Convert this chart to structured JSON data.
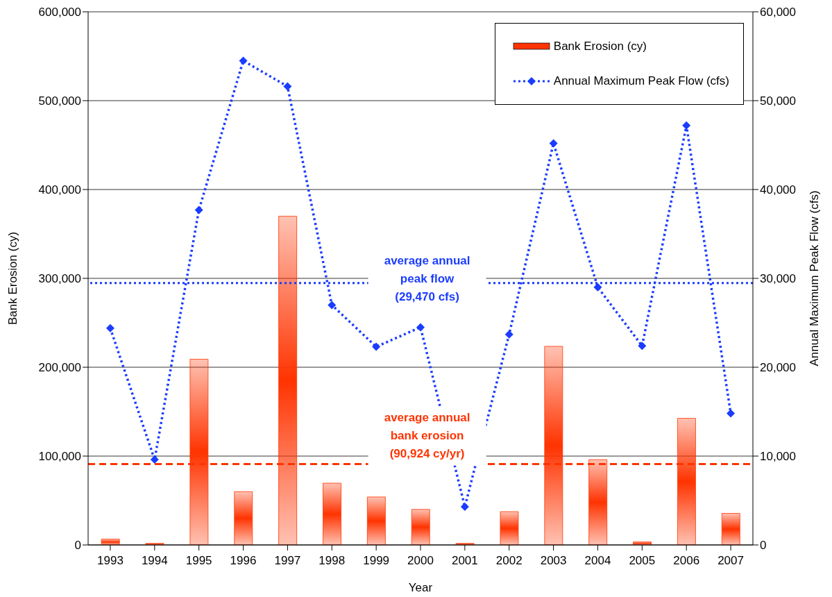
{
  "chart_data": {
    "type": "bar",
    "xlabel": "Year",
    "ylabel": "Bank Erosion (cy)",
    "y2label": "Annual Maximum Peak Flow (cfs)",
    "categories": [
      "1993",
      "1994",
      "1995",
      "1996",
      "1997",
      "1998",
      "1999",
      "2000",
      "2001",
      "2002",
      "2003",
      "2004",
      "2005",
      "2006",
      "2007"
    ],
    "series": [
      {
        "name": "Bank Erosion (cy)",
        "color": "#ff3300",
        "values": [
          6500,
          1800,
          209000,
          60000,
          370000,
          69500,
          54000,
          40000,
          1800,
          37500,
          223500,
          96000,
          3400,
          142500,
          35500
        ]
      },
      {
        "name": "Annual Maximum Peak Flow (cfs)",
        "type": "line",
        "axis": "y2",
        "color": "#1a3cff",
        "marker": "diamond",
        "line_style": "dotted",
        "values": [
          24400,
          9600,
          37700,
          54500,
          51600,
          27000,
          22300,
          24500,
          4300,
          23700,
          45200,
          29000,
          22400,
          47200,
          14800
        ]
      }
    ],
    "ylim": [
      0,
      600000
    ],
    "yticks": [
      0,
      {
        "value": 100000,
        "label": "100,000"
      },
      {
        "value": 200000,
        "label": "200,000"
      },
      {
        "value": 300000,
        "label": "300,000"
      },
      {
        "value": 400000,
        "label": "400,000"
      },
      {
        "value": 500000,
        "label": "500,000"
      },
      {
        "value": 600000,
        "label": "600,000"
      }
    ],
    "y2lim": [
      0,
      60000
    ],
    "y2ticks": [
      0,
      {
        "value": 10000,
        "label": "10,000"
      },
      {
        "value": 20000,
        "label": "20,000"
      },
      {
        "value": 30000,
        "label": "30,000"
      },
      {
        "value": 40000,
        "label": "40,000"
      },
      {
        "value": 50000,
        "label": "50,000"
      },
      {
        "value": 60000,
        "label": "60,000"
      }
    ],
    "ref_lines": [
      {
        "axis": "y2",
        "value": 29470,
        "label": "average annual peak flow (29,470 cfs)",
        "color": "#1a3cff",
        "line_style": "dotted"
      },
      {
        "axis": "y",
        "value": 90924,
        "label": "average annual bank erosion (90,924 cy/yr)",
        "color": "#ff3300",
        "line_style": "dashed"
      }
    ],
    "grid": "y",
    "legend": "top right"
  }
}
